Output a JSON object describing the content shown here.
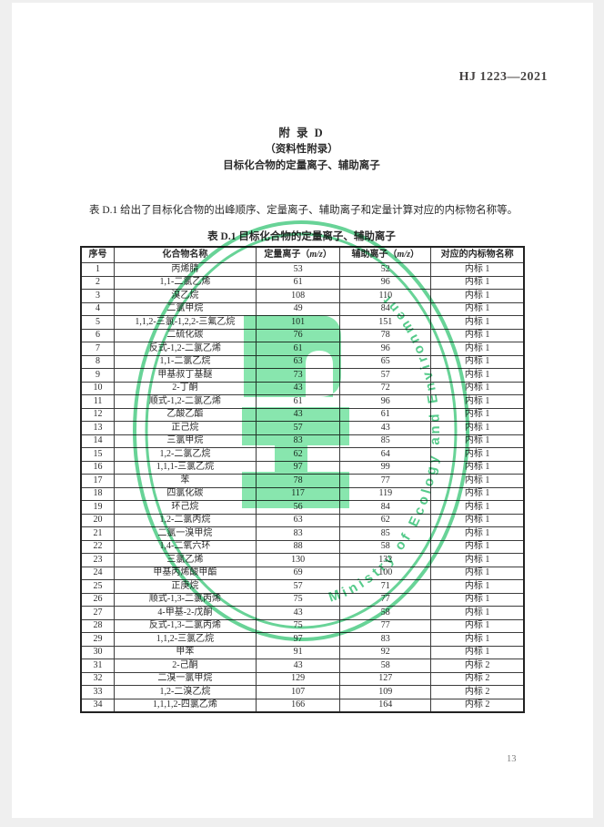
{
  "page": {
    "header_code": "HJ 1223—2021",
    "page_number": "13"
  },
  "appendix": {
    "title_line1": "附  录  D",
    "title_line2": "（资料性附录）",
    "title_line3": "目标化合物的定量离子、辅助离子",
    "intro": "表 D.1 给出了目标化合物的出峰顺序、定量离子、辅助离子和定量计算对应的内标物名称等。",
    "table_caption": "表 D.1  目标化合物的定量离子、辅助离子"
  },
  "watermark": {
    "text": "Ministry of Ecology and Environment",
    "color": "#4ecb85"
  },
  "table": {
    "headers": [
      {
        "label": "序号"
      },
      {
        "label": "化合物名称"
      },
      {
        "label": "定量离子",
        "unit_pre": "（",
        "unit_italic": "m/z",
        "unit_post": "）"
      },
      {
        "label": "辅助离子",
        "unit_pre": "（",
        "unit_italic": "m/z",
        "unit_post": "）"
      },
      {
        "label": "对应的内标物名称"
      }
    ],
    "rows": [
      [
        "1",
        "丙烯腈",
        "53",
        "52",
        "内标 1"
      ],
      [
        "2",
        "1,1-二氯乙烯",
        "61",
        "96",
        "内标 1"
      ],
      [
        "3",
        "溴乙烷",
        "108",
        "110",
        "内标 1"
      ],
      [
        "4",
        "二氯甲烷",
        "49",
        "84",
        "内标 1"
      ],
      [
        "5",
        "1,1,2-三氯-1,2,2-三氟乙烷",
        "101",
        "151",
        "内标 1"
      ],
      [
        "6",
        "二硫化碳",
        "76",
        "78",
        "内标 1"
      ],
      [
        "7",
        "反式-1,2-二氯乙烯",
        "61",
        "96",
        "内标 1"
      ],
      [
        "8",
        "1,1-二氯乙烷",
        "63",
        "65",
        "内标 1"
      ],
      [
        "9",
        "甲基叔丁基醚",
        "73",
        "57",
        "内标 1"
      ],
      [
        "10",
        "2-丁酮",
        "43",
        "72",
        "内标 1"
      ],
      [
        "11",
        "顺式-1,2-二氯乙烯",
        "61",
        "96",
        "内标 1"
      ],
      [
        "12",
        "乙酸乙酯",
        "43",
        "61",
        "内标 1"
      ],
      [
        "13",
        "正己烷",
        "57",
        "43",
        "内标 1"
      ],
      [
        "14",
        "三氯甲烷",
        "83",
        "85",
        "内标 1"
      ],
      [
        "15",
        "1,2-二氯乙烷",
        "62",
        "64",
        "内标 1"
      ],
      [
        "16",
        "1,1,1-三氯乙烷",
        "97",
        "99",
        "内标 1"
      ],
      [
        "17",
        "苯",
        "78",
        "77",
        "内标 1"
      ],
      [
        "18",
        "四氯化碳",
        "117",
        "119",
        "内标 1"
      ],
      [
        "19",
        "环己烷",
        "56",
        "84",
        "内标 1"
      ],
      [
        "20",
        "1,2-二氯丙烷",
        "63",
        "62",
        "内标 1"
      ],
      [
        "21",
        "二氯一溴甲烷",
        "83",
        "85",
        "内标 1"
      ],
      [
        "22",
        "1,4-二氧六环",
        "88",
        "58",
        "内标 1"
      ],
      [
        "23",
        "三氯乙烯",
        "130",
        "132",
        "内标 1"
      ],
      [
        "24",
        "甲基丙烯酸甲酯",
        "69",
        "100",
        "内标 1"
      ],
      [
        "25",
        "正庚烷",
        "57",
        "71",
        "内标 1"
      ],
      [
        "26",
        "顺式-1,3-二氯丙烯",
        "75",
        "77",
        "内标 1"
      ],
      [
        "27",
        "4-甲基-2-戊酮",
        "43",
        "58",
        "内标 1"
      ],
      [
        "28",
        "反式-1,3-二氯丙烯",
        "75",
        "77",
        "内标 1"
      ],
      [
        "29",
        "1,1,2-三氯乙烷",
        "97",
        "83",
        "内标 1"
      ],
      [
        "30",
        "甲苯",
        "91",
        "92",
        "内标 1"
      ],
      [
        "31",
        "2-己酮",
        "43",
        "58",
        "内标 2"
      ],
      [
        "32",
        "二溴一氯甲烷",
        "129",
        "127",
        "内标 2"
      ],
      [
        "33",
        "1,2-二溴乙烷",
        "107",
        "109",
        "内标 2"
      ],
      [
        "34",
        "1,1,1,2-四氯乙烯",
        "166",
        "164",
        "内标 2"
      ]
    ]
  }
}
